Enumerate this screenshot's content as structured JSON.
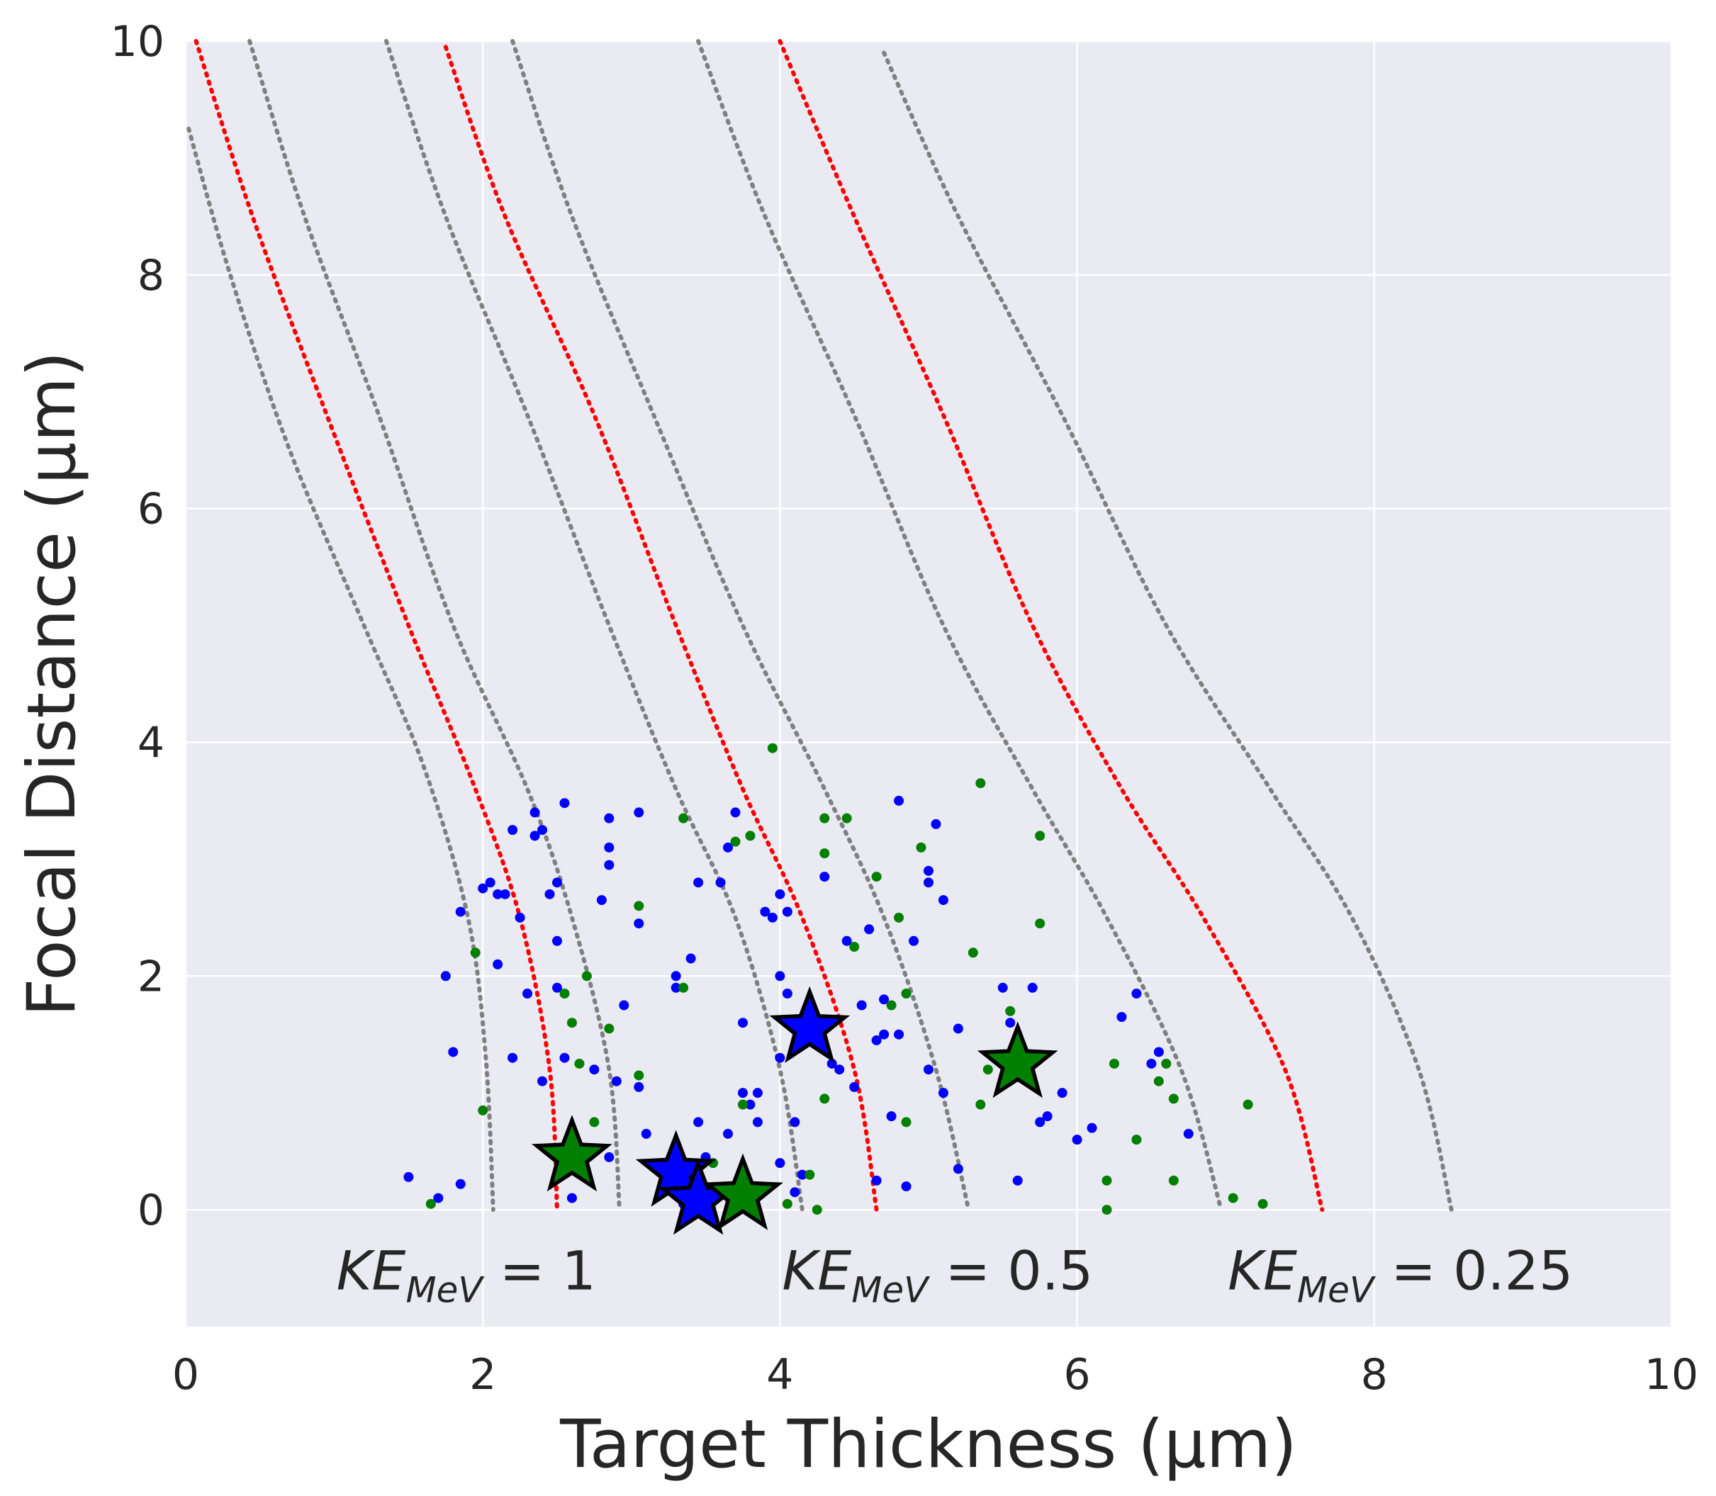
{
  "chart_data": {
    "type": "scatter",
    "xlabel": "Target Thickness (μm)",
    "ylabel": "Focal Distance (μm)",
    "xlim": [
      0,
      10
    ],
    "ylim": [
      -1,
      10
    ],
    "x_ticks": [
      "0",
      "2",
      "4",
      "6",
      "8",
      "10"
    ],
    "y_ticks": [
      "0",
      "2",
      "4",
      "6",
      "8",
      "10"
    ],
    "grid": true,
    "colors": {
      "background": "#eaeaf2",
      "grid": "#ffffff",
      "contour_gray": "#808080",
      "contour_red": "#ff0000",
      "blue": "#0000ff",
      "green": "#008000"
    },
    "annotations": [
      {
        "text": "KE",
        "sub": "MeV",
        "rest": " = 1",
        "x": 1.0,
        "y": -0.65
      },
      {
        "text": "KE",
        "sub": "MeV",
        "rest": " = 0.5",
        "x": 4.0,
        "y": -0.65
      },
      {
        "text": "KE",
        "sub": "MeV",
        "rest": " = 0.25",
        "x": 7.0,
        "y": -0.65
      }
    ],
    "contours": [
      {
        "color": "gray",
        "points": [
          [
            0.02,
            9.25
          ],
          [
            0.3,
            8
          ],
          [
            0.7,
            6.5
          ],
          [
            1.2,
            5
          ],
          [
            1.6,
            3.8
          ],
          [
            1.9,
            2.5
          ],
          [
            2.02,
            1.3
          ],
          [
            2.07,
            0
          ]
        ]
      },
      {
        "color": "red",
        "points": [
          [
            0.07,
            10
          ],
          [
            0.45,
            8.5
          ],
          [
            0.95,
            6.8
          ],
          [
            1.5,
            5
          ],
          [
            1.95,
            3.6
          ],
          [
            2.25,
            2.5
          ],
          [
            2.45,
            1.2
          ],
          [
            2.5,
            0
          ]
        ]
      },
      {
        "color": "gray",
        "points": [
          [
            0.43,
            10
          ],
          [
            0.8,
            8.5
          ],
          [
            1.3,
            6.8
          ],
          [
            1.8,
            5
          ],
          [
            2.3,
            3.6
          ],
          [
            2.6,
            2.5
          ],
          [
            2.85,
            1.2
          ],
          [
            2.92,
            0
          ]
        ]
      },
      {
        "color": "gray",
        "points": [
          [
            1.35,
            10
          ],
          [
            1.75,
            8.5
          ],
          [
            2.3,
            6.8
          ],
          [
            2.85,
            5
          ],
          [
            3.3,
            3.6
          ],
          [
            3.7,
            2.5
          ],
          [
            4.0,
            1.2
          ],
          [
            4.15,
            0
          ]
        ]
      },
      {
        "color": "red",
        "points": [
          [
            1.75,
            9.95
          ],
          [
            2.15,
            8.5
          ],
          [
            2.75,
            6.8
          ],
          [
            3.3,
            5
          ],
          [
            3.75,
            3.6
          ],
          [
            4.15,
            2.5
          ],
          [
            4.5,
            1.2
          ],
          [
            4.65,
            0
          ]
        ]
      },
      {
        "color": "gray",
        "points": [
          [
            2.2,
            10
          ],
          [
            2.6,
            8.5
          ],
          [
            3.15,
            6.8
          ],
          [
            3.75,
            5
          ],
          [
            4.3,
            3.6
          ],
          [
            4.7,
            2.5
          ],
          [
            5.05,
            1.2
          ],
          [
            5.27,
            0
          ]
        ]
      },
      {
        "color": "gray",
        "points": [
          [
            3.45,
            10
          ],
          [
            3.9,
            8.5
          ],
          [
            4.5,
            6.8
          ],
          [
            5.1,
            5
          ],
          [
            5.7,
            3.6
          ],
          [
            6.2,
            2.5
          ],
          [
            6.7,
            1.2
          ],
          [
            6.97,
            0
          ]
        ]
      },
      {
        "color": "red",
        "points": [
          [
            4.0,
            10
          ],
          [
            4.5,
            8.5
          ],
          [
            5.1,
            6.8
          ],
          [
            5.7,
            5
          ],
          [
            6.3,
            3.6
          ],
          [
            6.85,
            2.5
          ],
          [
            7.4,
            1.2
          ],
          [
            7.65,
            0
          ]
        ]
      },
      {
        "color": "gray",
        "points": [
          [
            4.7,
            9.9
          ],
          [
            5.2,
            8.5
          ],
          [
            5.9,
            6.8
          ],
          [
            6.6,
            5
          ],
          [
            7.3,
            3.6
          ],
          [
            7.85,
            2.5
          ],
          [
            8.3,
            1.2
          ],
          [
            8.52,
            0
          ]
        ]
      }
    ],
    "series": [
      {
        "color": "blue",
        "points": [
          [
            1.5,
            0.28
          ],
          [
            1.7,
            0.1
          ],
          [
            1.75,
            2.0
          ],
          [
            1.8,
            1.35
          ],
          [
            1.85,
            0.22
          ],
          [
            1.85,
            2.55
          ],
          [
            2.0,
            2.75
          ],
          [
            2.05,
            2.8
          ],
          [
            2.1,
            2.7
          ],
          [
            2.1,
            2.1
          ],
          [
            2.15,
            2.7
          ],
          [
            2.2,
            3.25
          ],
          [
            2.2,
            1.3
          ],
          [
            2.25,
            2.5
          ],
          [
            2.3,
            1.85
          ],
          [
            2.35,
            3.2
          ],
          [
            2.35,
            3.4
          ],
          [
            2.4,
            3.25
          ],
          [
            2.4,
            1.1
          ],
          [
            2.45,
            2.7
          ],
          [
            2.5,
            2.8
          ],
          [
            2.5,
            1.9
          ],
          [
            2.5,
            2.3
          ],
          [
            2.55,
            3.48
          ],
          [
            2.55,
            1.3
          ],
          [
            2.6,
            0.1
          ],
          [
            2.75,
            1.2
          ],
          [
            2.8,
            2.65
          ],
          [
            2.85,
            3.35
          ],
          [
            2.85,
            3.1
          ],
          [
            2.85,
            2.95
          ],
          [
            2.85,
            0.45
          ],
          [
            2.9,
            1.1
          ],
          [
            2.95,
            1.75
          ],
          [
            3.05,
            3.4
          ],
          [
            3.05,
            2.45
          ],
          [
            3.05,
            1.05
          ],
          [
            3.1,
            0.65
          ],
          [
            3.3,
            2.0
          ],
          [
            3.3,
            1.9
          ],
          [
            3.35,
            0.05
          ],
          [
            3.4,
            2.15
          ],
          [
            3.4,
            0.35
          ],
          [
            3.45,
            2.8
          ],
          [
            3.45,
            0.75
          ],
          [
            3.5,
            0.45
          ],
          [
            3.6,
            2.8
          ],
          [
            3.65,
            3.1
          ],
          [
            3.65,
            0.65
          ],
          [
            3.7,
            3.4
          ],
          [
            3.75,
            1.6
          ],
          [
            3.75,
            1.0
          ],
          [
            3.8,
            0.9
          ],
          [
            3.85,
            0.75
          ],
          [
            3.85,
            1.0
          ],
          [
            3.9,
            2.55
          ],
          [
            3.95,
            2.5
          ],
          [
            4.0,
            2.7
          ],
          [
            4.0,
            2.0
          ],
          [
            4.0,
            1.3
          ],
          [
            4.0,
            0.4
          ],
          [
            4.05,
            2.55
          ],
          [
            4.05,
            1.85
          ],
          [
            4.1,
            0.75
          ],
          [
            4.1,
            0.15
          ],
          [
            4.15,
            0.3
          ],
          [
            4.3,
            2.85
          ],
          [
            4.35,
            1.25
          ],
          [
            4.4,
            1.2
          ],
          [
            4.45,
            2.3
          ],
          [
            4.5,
            1.05
          ],
          [
            4.55,
            1.75
          ],
          [
            4.6,
            2.4
          ],
          [
            4.65,
            1.45
          ],
          [
            4.65,
            0.25
          ],
          [
            4.7,
            1.8
          ],
          [
            4.7,
            1.5
          ],
          [
            4.75,
            0.8
          ],
          [
            4.8,
            3.5
          ],
          [
            4.8,
            1.5
          ],
          [
            4.85,
            0.2
          ],
          [
            4.9,
            2.3
          ],
          [
            5.0,
            2.9
          ],
          [
            5.0,
            2.8
          ],
          [
            5.0,
            1.2
          ],
          [
            5.05,
            3.3
          ],
          [
            5.1,
            2.65
          ],
          [
            5.1,
            1.0
          ],
          [
            5.2,
            1.55
          ],
          [
            5.2,
            0.35
          ],
          [
            5.5,
            1.9
          ],
          [
            5.55,
            1.6
          ],
          [
            5.6,
            0.25
          ],
          [
            5.7,
            1.9
          ],
          [
            5.75,
            0.75
          ],
          [
            5.8,
            0.8
          ],
          [
            5.9,
            1.0
          ],
          [
            6.0,
            0.6
          ],
          [
            6.1,
            0.7
          ],
          [
            6.3,
            1.65
          ],
          [
            6.4,
            1.85
          ],
          [
            6.5,
            1.25
          ],
          [
            6.55,
            1.35
          ],
          [
            6.75,
            0.65
          ]
        ]
      },
      {
        "color": "green",
        "points": [
          [
            1.65,
            0.05
          ],
          [
            1.95,
            2.2
          ],
          [
            2.0,
            0.85
          ],
          [
            2.55,
            1.85
          ],
          [
            2.6,
            1.6
          ],
          [
            2.65,
            1.25
          ],
          [
            2.7,
            2.0
          ],
          [
            2.75,
            0.75
          ],
          [
            2.85,
            1.55
          ],
          [
            3.05,
            1.15
          ],
          [
            3.05,
            2.6
          ],
          [
            3.35,
            3.35
          ],
          [
            3.35,
            1.9
          ],
          [
            3.55,
            0.4
          ],
          [
            3.7,
            3.15
          ],
          [
            3.75,
            0.9
          ],
          [
            3.8,
            3.2
          ],
          [
            3.95,
            3.95
          ],
          [
            4.05,
            0.05
          ],
          [
            4.1,
            1.4
          ],
          [
            4.2,
            0.3
          ],
          [
            4.25,
            0.0
          ],
          [
            4.3,
            3.35
          ],
          [
            4.3,
            3.05
          ],
          [
            4.3,
            0.95
          ],
          [
            4.45,
            3.35
          ],
          [
            4.5,
            2.25
          ],
          [
            4.65,
            2.85
          ],
          [
            4.75,
            1.75
          ],
          [
            4.8,
            2.5
          ],
          [
            4.85,
            1.85
          ],
          [
            4.85,
            0.75
          ],
          [
            4.95,
            3.1
          ],
          [
            5.3,
            2.2
          ],
          [
            5.35,
            3.65
          ],
          [
            5.35,
            0.9
          ],
          [
            5.4,
            1.2
          ],
          [
            5.55,
            1.7
          ],
          [
            5.75,
            3.2
          ],
          [
            5.75,
            2.45
          ],
          [
            6.2,
            0.25
          ],
          [
            6.2,
            0.0
          ],
          [
            6.25,
            1.25
          ],
          [
            6.4,
            0.6
          ],
          [
            6.55,
            1.1
          ],
          [
            6.6,
            1.25
          ],
          [
            6.65,
            0.95
          ],
          [
            6.65,
            0.25
          ],
          [
            7.05,
            0.1
          ],
          [
            7.15,
            0.9
          ],
          [
            7.25,
            0.05
          ]
        ]
      }
    ],
    "stars": [
      {
        "color": "green",
        "x": 2.6,
        "y": 0.45
      },
      {
        "color": "blue",
        "x": 3.3,
        "y": 0.32
      },
      {
        "color": "blue",
        "x": 3.45,
        "y": 0.08
      },
      {
        "color": "green",
        "x": 3.75,
        "y": 0.12
      },
      {
        "color": "blue",
        "x": 4.2,
        "y": 1.55
      },
      {
        "color": "green",
        "x": 5.6,
        "y": 1.25
      }
    ]
  }
}
